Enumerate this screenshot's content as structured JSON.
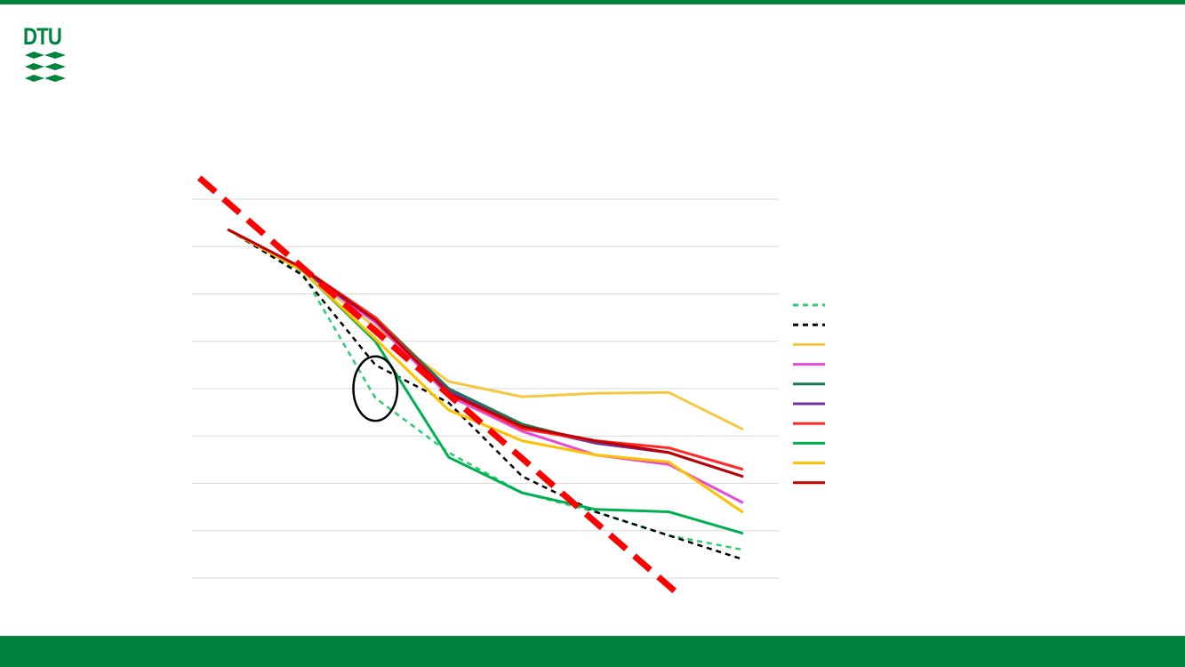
{
  "colors": {
    "brand_green": "#00843d",
    "gridline": "#d9d9d9",
    "trend_red": "#ff0000"
  },
  "logo": {
    "text": "DTU",
    "icon": "dtu-logo-icon"
  },
  "chart_data": {
    "type": "line",
    "title": "",
    "xlabel": "",
    "ylabel": "",
    "x": [
      1,
      2,
      3,
      4,
      5,
      6,
      7,
      8
    ],
    "xlim": [
      0.5,
      8.5
    ],
    "ylim": [
      0,
      8
    ],
    "grid": true,
    "legend_position": "right",
    "series": [
      {
        "color": "#2ecc71",
        "dash": true,
        "values": [
          7.35,
          6.45,
          3.8,
          2.65,
          1.8,
          1.4,
          0.9,
          0.6
        ]
      },
      {
        "color": "#000000",
        "dash": true,
        "values": [
          7.35,
          6.4,
          4.5,
          3.7,
          2.15,
          1.4,
          0.9,
          0.4
        ]
      },
      {
        "color": "#f4c842",
        "dash": false,
        "values": [
          7.35,
          6.5,
          5.3,
          4.15,
          3.83,
          3.9,
          3.92,
          3.15
        ]
      },
      {
        "color": "#e649d6",
        "dash": false,
        "values": [
          7.35,
          6.5,
          5.4,
          3.85,
          3.1,
          2.6,
          2.4,
          1.6
        ]
      },
      {
        "color": "#1a7a4a",
        "dash": false,
        "values": [
          7.35,
          6.55,
          5.5,
          4.0,
          3.25,
          2.85,
          2.65,
          2.15
        ]
      },
      {
        "color": "#7030a0",
        "dash": false,
        "values": [
          7.35,
          6.5,
          5.45,
          3.95,
          3.2,
          2.85,
          2.65,
          2.15
        ]
      },
      {
        "color": "#ff2b2b",
        "dash": false,
        "values": [
          7.35,
          6.55,
          5.5,
          3.9,
          3.15,
          2.9,
          2.75,
          2.3
        ]
      },
      {
        "color": "#00b050",
        "dash": false,
        "values": [
          7.35,
          6.5,
          5.0,
          2.55,
          1.8,
          1.45,
          1.4,
          0.95
        ]
      },
      {
        "color": "#ffc000",
        "dash": false,
        "values": [
          7.35,
          6.5,
          5.05,
          3.55,
          2.9,
          2.6,
          2.45,
          1.4
        ]
      },
      {
        "color": "#c00000",
        "dash": false,
        "values": [
          7.35,
          6.55,
          5.45,
          3.9,
          3.2,
          2.9,
          2.65,
          2.15
        ]
      }
    ],
    "trendline": {
      "color": "#ff0000",
      "dash": true,
      "x": [
        0.6,
        7.1
      ],
      "y": [
        8.45,
        -0.3
      ]
    },
    "annotation": {
      "shape": "ellipse",
      "cx": 3.0,
      "cy": 4.0,
      "rx": 0.3,
      "ry": 0.68
    }
  }
}
